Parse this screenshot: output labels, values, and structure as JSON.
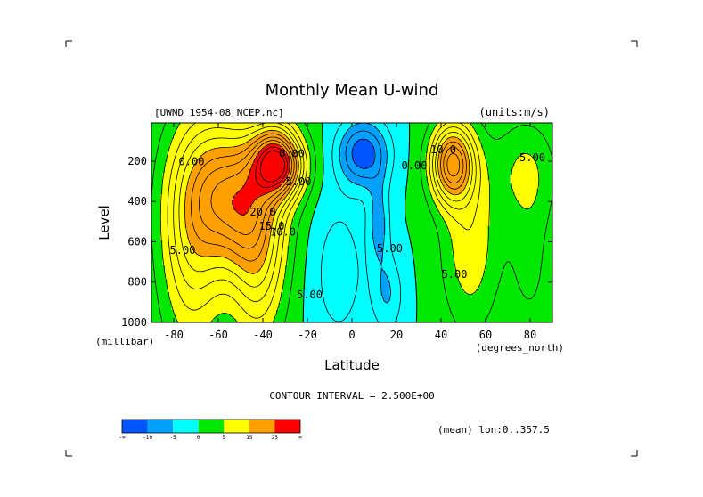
{
  "chart_data": {
    "type": "heatmap",
    "subtype": "filled-contour",
    "title": "Monthly Mean U-wind",
    "dataset_label": "[UWND_1954-08_NCEP.nc]",
    "units_label": "(units:m/s)",
    "xlabel": "Latitude",
    "ylabel": "Level",
    "x_unit_label": "(degrees_north)",
    "y_unit_label": "(millibar)",
    "xlim": [
      -90,
      90
    ],
    "ylim": [
      1000,
      10
    ],
    "y_inverted": true,
    "x_ticks": [
      -80,
      -60,
      -40,
      -20,
      0,
      20,
      40,
      60,
      80
    ],
    "y_ticks": [
      200,
      400,
      600,
      800,
      1000
    ],
    "contour_interval_text": "CONTOUR INTERVAL = 2.500E+00",
    "footer_note": "(mean) lon:0..357.5",
    "colorbar": {
      "colors": [
        "#0055ff",
        "#00a0ff",
        "#00ffff",
        "#00e800",
        "#ffff00",
        "#ffa000",
        "#ff0000"
      ],
      "tick_labels": [
        "-∞",
        "-10",
        "-5",
        "0",
        "5",
        "15",
        "25",
        "∞"
      ]
    },
    "contour_labels": [
      {
        "text": "0.00",
        "lat": -72,
        "lev": 220
      },
      {
        "text": "5.00",
        "lat": -76,
        "lev": 660
      },
      {
        "text": "20.0",
        "lat": -40,
        "lev": 470
      },
      {
        "text": "15.0",
        "lat": -36,
        "lev": 540
      },
      {
        "text": "10.0",
        "lat": -31,
        "lev": 570
      },
      {
        "text": "5.00",
        "lat": -24,
        "lev": 320
      },
      {
        "text": "0.00",
        "lat": -27,
        "lev": 180
      },
      {
        "text": "5.00",
        "lat": -19,
        "lev": 880
      },
      {
        "text": "5.00",
        "lat": 17,
        "lev": 650
      },
      {
        "text": "0.00",
        "lat": 28,
        "lev": 240
      },
      {
        "text": "10.0",
        "lat": 41,
        "lev": 160
      },
      {
        "text": "5.00",
        "lat": 46,
        "lev": 780
      },
      {
        "text": "5.00",
        "lat": 81,
        "lev": 200
      }
    ],
    "features": [
      {
        "kind": "jet-max",
        "lat": -33,
        "lev": 200,
        "peak": 30
      },
      {
        "kind": "jet-max",
        "lat": 45,
        "lev": 200,
        "peak": 22
      },
      {
        "kind": "easterly-min",
        "lat": 5,
        "lev": 160,
        "peak": -13
      },
      {
        "kind": "easterly-min",
        "lat": 14,
        "lev": 560,
        "peak": -7
      }
    ]
  },
  "frame": {
    "corner_marks": "crop-corners"
  }
}
